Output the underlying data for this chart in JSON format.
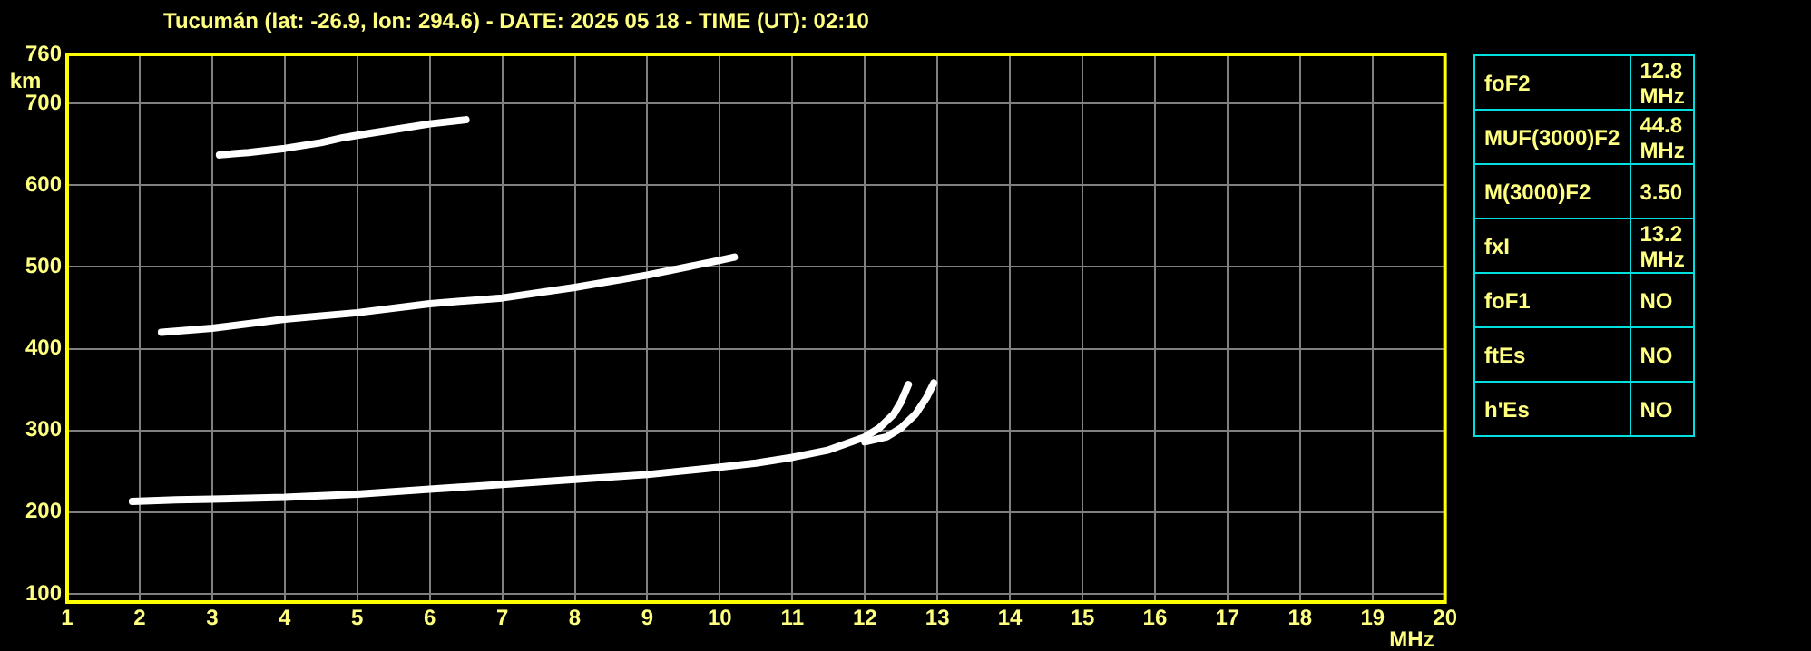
{
  "chart_data": [
    {
      "type": "line",
      "title": "Tucumán (lat: -26.9, lon: 294.6) - DATE: 2025 05 18 - TIME (UT): 02:10",
      "xlabel": "MHz",
      "ylabel": "km",
      "series": [
        {
          "color": "#ffffff",
          "x": [
            1.9,
            2.5,
            3,
            4,
            5,
            6,
            7,
            8,
            9,
            10,
            10.5,
            11,
            11.5,
            12,
            12.2,
            12.4,
            12.5,
            12.6
          ],
          "values": [
            213,
            215,
            216,
            218,
            222,
            228,
            234,
            240,
            246,
            255,
            260,
            267,
            276,
            292,
            303,
            320,
            335,
            356
          ]
        },
        {
          "color": "#ffffff",
          "x": [
            12,
            12.3,
            12.5,
            12.7,
            12.85,
            12.95
          ],
          "values": [
            286,
            292,
            303,
            320,
            340,
            358
          ]
        },
        {
          "color": "#ffffff",
          "x": [
            2.3,
            3,
            4,
            5,
            6,
            7,
            8,
            9,
            10,
            10.2
          ],
          "values": [
            420,
            425,
            436,
            444,
            455,
            462,
            475,
            490,
            508,
            512
          ]
        },
        {
          "color": "#ffffff",
          "x": [
            3.1,
            3.5,
            4,
            4.5,
            4.8,
            5,
            5.5,
            6,
            6.5
          ],
          "values": [
            637,
            640,
            645,
            652,
            658,
            661,
            668,
            675,
            680
          ]
        }
      ],
      "xlim": [
        1,
        20
      ],
      "xticks": [
        1,
        2,
        3,
        4,
        5,
        6,
        7,
        8,
        9,
        10,
        11,
        12,
        13,
        14,
        15,
        16,
        17,
        18,
        19,
        20
      ],
      "ylim": [
        90,
        760
      ],
      "yticks": [
        100,
        200,
        300,
        400,
        500,
        600,
        700,
        760
      ],
      "grid": true,
      "legend": false,
      "marker": "none",
      "line_style": "solid"
    },
    {
      "type": "other",
      "annotations": [
        "foF2",
        "12.8 MHz",
        "MUF(3000)F2",
        "44.8 MHz",
        "M(3000)F2",
        "3.50",
        "fxI",
        "13.2 MHz",
        "foF1",
        "NO",
        "ftEs",
        "NO",
        "h'Es",
        "NO"
      ]
    }
  ]
}
